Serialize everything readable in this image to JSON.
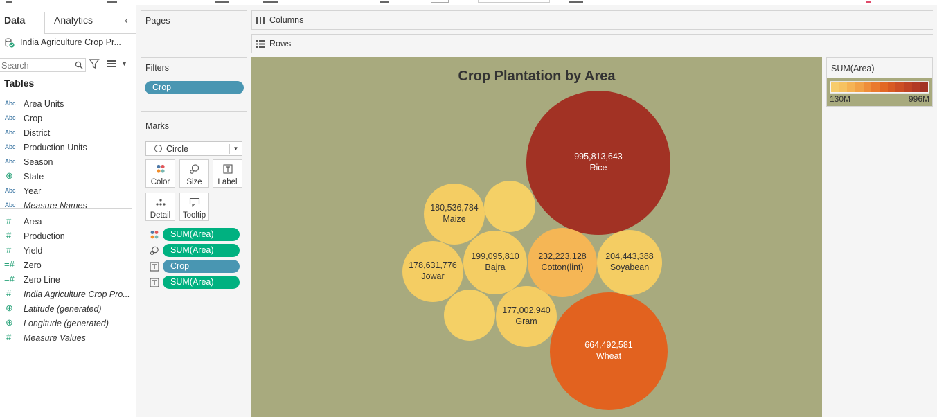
{
  "left_pane": {
    "tabs": [
      "Data",
      "Analytics"
    ],
    "datasource": "India Agriculture Crop Pr...",
    "search_placeholder": "Search",
    "tables_heading": "Tables",
    "fields": [
      {
        "type": "Abc",
        "name": "Area Units",
        "italic": false
      },
      {
        "type": "Abc",
        "name": "Crop",
        "italic": false
      },
      {
        "type": "Abc",
        "name": "District",
        "italic": false
      },
      {
        "type": "Abc",
        "name": "Production Units",
        "italic": false
      },
      {
        "type": "Abc",
        "name": "Season",
        "italic": false
      },
      {
        "type": "geo",
        "name": "State",
        "italic": false
      },
      {
        "type": "Abc",
        "name": "Year",
        "italic": false
      },
      {
        "type": "Abc",
        "name": "Measure Names",
        "italic": true
      },
      {
        "type": "#",
        "name": "Area",
        "italic": false
      },
      {
        "type": "#",
        "name": "Production",
        "italic": false
      },
      {
        "type": "#",
        "name": "Yield",
        "italic": false
      },
      {
        "type": "=#",
        "name": "Zero",
        "italic": false
      },
      {
        "type": "=#",
        "name": "Zero Line",
        "italic": false
      },
      {
        "type": "#",
        "name": "India Agriculture Crop Pro...",
        "italic": true
      },
      {
        "type": "geo",
        "name": "Latitude (generated)",
        "italic": true
      },
      {
        "type": "geo",
        "name": "Longitude (generated)",
        "italic": true
      },
      {
        "type": "#",
        "name": "Measure Values",
        "italic": true
      }
    ]
  },
  "pages": {
    "title": "Pages"
  },
  "filters": {
    "title": "Filters",
    "pills": [
      "Crop"
    ]
  },
  "marks": {
    "title": "Marks",
    "mark_type": "Circle",
    "buttons": [
      "Color",
      "Size",
      "Label",
      "Detail",
      "Tooltip"
    ],
    "encodings": [
      {
        "icon": "color",
        "pill": "SUM(Area)",
        "color": "green"
      },
      {
        "icon": "size",
        "pill": "SUM(Area)",
        "color": "green"
      },
      {
        "icon": "label",
        "pill": "Crop",
        "color": "blue"
      },
      {
        "icon": "label",
        "pill": "SUM(Area)",
        "color": "green"
      }
    ]
  },
  "shelves": {
    "columns": "Columns",
    "rows": "Rows"
  },
  "legend": {
    "title": "SUM(Area)",
    "min": "130M",
    "max": "996M"
  },
  "colors": {
    "view_bg": "#a8aa7e",
    "pill_green": "#00b180",
    "pill_blue": "#4996b2",
    "ramp": [
      "#f7cc6c",
      "#f6c261",
      "#f5b354",
      "#f2a247",
      "#ef8e3a",
      "#ea7a2e",
      "#e26825",
      "#d85a23",
      "#cc4e24",
      "#bf4324",
      "#b23a24",
      "#a23224"
    ]
  },
  "chart_data": {
    "type": "packed-bubble",
    "title": "Crop Plantation by Area",
    "measure": "SUM(Area)",
    "color_range": [
      "130M",
      "996M"
    ],
    "bubbles": [
      {
        "label": "Rice",
        "value": 995813643,
        "value_label": "995,813,643",
        "color": "#a23224"
      },
      {
        "label": "Wheat",
        "value": 664492581,
        "value_label": "664,492,581",
        "color": "#e2621f"
      },
      {
        "label": "Cotton(lint)",
        "value": 232223128,
        "value_label": "232,223,128",
        "color": "#f5b655"
      },
      {
        "label": "Soyabean",
        "value": 204443388,
        "value_label": "204,443,388",
        "color": "#f4cd63"
      },
      {
        "label": "Bajra",
        "value": 199095810,
        "value_label": "199,095,810",
        "color": "#f4cd63"
      },
      {
        "label": "Maize",
        "value": 180536784,
        "value_label": "180,536,784",
        "color": "#f4cd63"
      },
      {
        "label": "Jowar",
        "value": 178631776,
        "value_label": "178,631,776",
        "color": "#f4cd63"
      },
      {
        "label": "Gram",
        "value": 177002940,
        "value_label": "177,002,940",
        "color": "#f4cd63"
      },
      {
        "label": "",
        "value": null,
        "value_label": "",
        "color": "#f4d066"
      },
      {
        "label": "",
        "value": null,
        "value_label": "",
        "color": "#f4d066"
      }
    ]
  }
}
